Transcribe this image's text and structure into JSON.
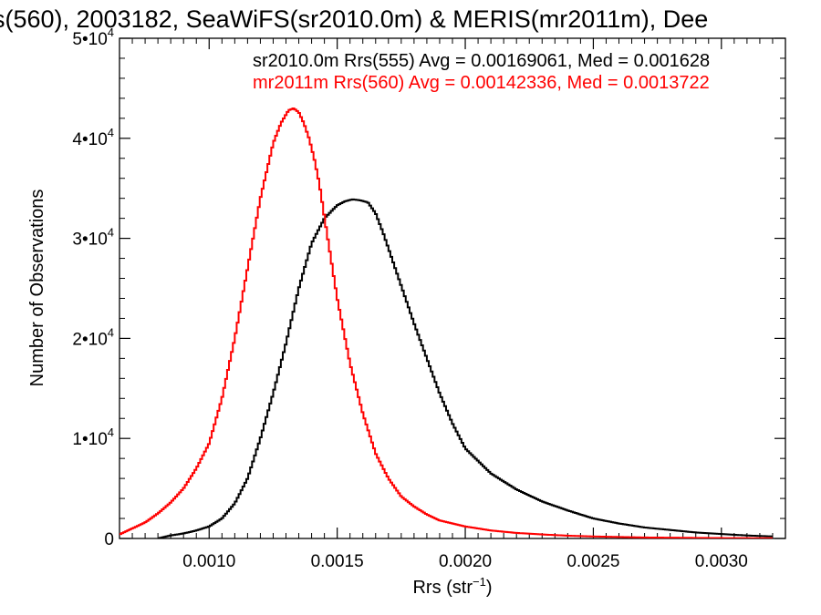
{
  "chart_data": {
    "type": "line",
    "title": "s(560), 2003182, SeaWiFS(sr2010.0m) & MERIS(mr2011m), Dee",
    "xlabel_main": "Rrs (str",
    "xlabel_sup": "−1",
    "xlabel_close": ")",
    "ylabel": "Number of Observations",
    "xlim": [
      0.00065,
      0.00325
    ],
    "ylim": [
      0,
      50000
    ],
    "grid": false,
    "x_ticks": [
      {
        "value": 0.001,
        "label": "0.0010"
      },
      {
        "value": 0.0015,
        "label": "0.0015"
      },
      {
        "value": 0.002,
        "label": "0.0020"
      },
      {
        "value": 0.0025,
        "label": "0.0025"
      },
      {
        "value": 0.003,
        "label": "0.0030"
      }
    ],
    "y_ticks": [
      {
        "value": 0,
        "base": "0",
        "exp": ""
      },
      {
        "value": 10000,
        "base": "1•10",
        "exp": "4"
      },
      {
        "value": 20000,
        "base": "2•10",
        "exp": "4"
      },
      {
        "value": 30000,
        "base": "3•10",
        "exp": "4"
      },
      {
        "value": 40000,
        "base": "4•10",
        "exp": "4"
      },
      {
        "value": 50000,
        "base": "5•10",
        "exp": "4"
      }
    ],
    "annotations": [
      {
        "text": "sr2010.0m Rrs(555) Avg = 0.00169061, Med = 0.001628",
        "color": "#000000"
      },
      {
        "text": "mr2011m Rrs(560) Avg = 0.00142336, Med = 0.0013722",
        "color": "#ff0000"
      }
    ],
    "series": [
      {
        "color": "#000000",
        "x": [
          0.0008,
          0.00085,
          0.0009,
          0.00095,
          0.001,
          0.00105,
          0.0011,
          0.00115,
          0.0012,
          0.00125,
          0.0013,
          0.00135,
          0.0014,
          0.00145,
          0.0015,
          0.00153,
          0.00156,
          0.00159,
          0.00162,
          0.00165,
          0.00168,
          0.00172,
          0.00176,
          0.0018,
          0.00185,
          0.0019,
          0.00195,
          0.002,
          0.0021,
          0.0022,
          0.0023,
          0.0024,
          0.0025,
          0.0026,
          0.0027,
          0.0028,
          0.0029,
          0.003,
          0.0031,
          0.0032
        ],
        "y": [
          0,
          300,
          500,
          800,
          1200,
          2000,
          3500,
          6000,
          10000,
          14500,
          19500,
          25000,
          29500,
          32000,
          33300,
          33700,
          33900,
          33800,
          33600,
          32500,
          30500,
          27500,
          24500,
          21500,
          18000,
          14500,
          11500,
          9000,
          6500,
          4900,
          3700,
          2800,
          2000,
          1500,
          1100,
          850,
          600,
          450,
          300,
          200
        ]
      },
      {
        "color": "#ff0000",
        "x": [
          0.00065,
          0.0007,
          0.00075,
          0.0008,
          0.00085,
          0.0009,
          0.00095,
          0.001,
          0.00105,
          0.0011,
          0.00115,
          0.0012,
          0.00125,
          0.00128,
          0.00131,
          0.00133,
          0.00135,
          0.00137,
          0.00139,
          0.00141,
          0.00143,
          0.00146,
          0.0015,
          0.00155,
          0.0016,
          0.00165,
          0.0017,
          0.00175,
          0.0018,
          0.00185,
          0.0019,
          0.002,
          0.0021,
          0.0022,
          0.0023,
          0.0024,
          0.0025,
          0.0026,
          0.0027,
          0.0028,
          0.0029,
          0.003,
          0.0031,
          0.0032
        ],
        "y": [
          400,
          1000,
          1600,
          2500,
          3600,
          5000,
          7000,
          9500,
          14000,
          20000,
          27000,
          34000,
          39500,
          41500,
          42800,
          43000,
          42600,
          41500,
          40000,
          38000,
          35500,
          30500,
          24000,
          17500,
          12500,
          8500,
          6000,
          4200,
          3200,
          2400,
          1800,
          1200,
          800,
          550,
          400,
          280,
          200,
          150,
          100,
          80,
          60,
          40,
          30,
          20
        ]
      }
    ]
  }
}
